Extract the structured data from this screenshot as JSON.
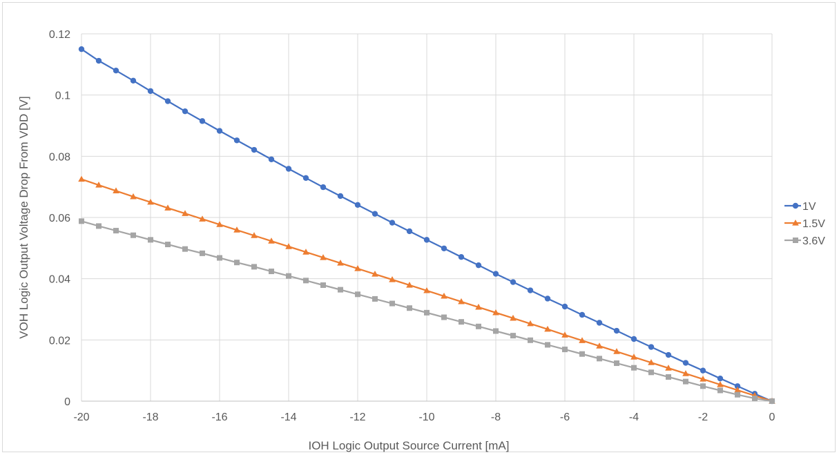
{
  "chart_data": {
    "type": "line",
    "title": "",
    "xlabel": "IOH Logic Output Source Current [mA]",
    "ylabel": "VOH Logic Output Voltage Drop From VDD [V]",
    "xlim": [
      -20,
      0
    ],
    "ylim": [
      0,
      0.12
    ],
    "x_ticks": [
      -20,
      -18,
      -16,
      -14,
      -12,
      -10,
      -8,
      -6,
      -4,
      -2,
      0
    ],
    "y_ticks": [
      0,
      0.02,
      0.04,
      0.06,
      0.08,
      0.1,
      0.12
    ],
    "x_tick_labels": [
      "-20",
      "-18",
      "-16",
      "-14",
      "-12",
      "-10",
      "-8",
      "-6",
      "-4",
      "-2",
      "0"
    ],
    "y_tick_labels": [
      "0",
      "0.02",
      "0.04",
      "0.06",
      "0.08",
      "0.1",
      "0.12"
    ],
    "grid": true,
    "legend_position": "right",
    "x": [
      -20,
      -19.5,
      -19,
      -18.5,
      -18,
      -17.5,
      -17,
      -16.5,
      -16,
      -15.5,
      -15,
      -14.5,
      -14,
      -13.5,
      -13,
      -12.5,
      -12,
      -11.5,
      -11,
      -10.5,
      -10,
      -9.5,
      -9,
      -8.5,
      -8,
      -7.5,
      -7,
      -6.5,
      -6,
      -5.5,
      -5,
      -4.5,
      -4,
      -3.5,
      -3,
      -2.5,
      -2,
      -1.5,
      -1,
      -0.5,
      0
    ],
    "series": [
      {
        "name": "1V",
        "color": "#4472c4",
        "marker": "circle",
        "values": [
          0.115,
          0.1112,
          0.108,
          0.1047,
          0.1013,
          0.098,
          0.0947,
          0.0915,
          0.0883,
          0.0852,
          0.0821,
          0.079,
          0.0759,
          0.0729,
          0.0699,
          0.067,
          0.0641,
          0.0612,
          0.0583,
          0.0555,
          0.0527,
          0.0499,
          0.0471,
          0.0444,
          0.0416,
          0.0389,
          0.0362,
          0.0335,
          0.0309,
          0.0282,
          0.0256,
          0.023,
          0.0203,
          0.0177,
          0.0151,
          0.0125,
          0.01,
          0.0074,
          0.0049,
          0.0024,
          0
        ]
      },
      {
        "name": "1.5V",
        "color": "#ed7d31",
        "marker": "triangle",
        "values": [
          0.0725,
          0.0706,
          0.0687,
          0.0668,
          0.065,
          0.0631,
          0.0613,
          0.0595,
          0.0577,
          0.0559,
          0.0541,
          0.0523,
          0.0505,
          0.0487,
          0.0469,
          0.0451,
          0.0433,
          0.0415,
          0.0397,
          0.0379,
          0.0361,
          0.0343,
          0.0325,
          0.0307,
          0.0289,
          0.0271,
          0.0253,
          0.0235,
          0.0216,
          0.0198,
          0.018,
          0.0162,
          0.0144,
          0.0126,
          0.0108,
          0.009,
          0.0072,
          0.0054,
          0.0036,
          0.0018,
          0
        ]
      },
      {
        "name": "3.6V",
        "color": "#a5a5a5",
        "marker": "square",
        "values": [
          0.0588,
          0.0572,
          0.0557,
          0.0542,
          0.0527,
          0.0512,
          0.0497,
          0.0483,
          0.0468,
          0.0453,
          0.0439,
          0.0424,
          0.0409,
          0.0394,
          0.0379,
          0.0364,
          0.0349,
          0.0334,
          0.0319,
          0.0304,
          0.0289,
          0.0274,
          0.0259,
          0.0244,
          0.0229,
          0.0214,
          0.0199,
          0.0184,
          0.0169,
          0.0154,
          0.0139,
          0.0124,
          0.0109,
          0.0094,
          0.0079,
          0.0064,
          0.0049,
          0.0035,
          0.0021,
          0.0009,
          0
        ]
      }
    ]
  }
}
